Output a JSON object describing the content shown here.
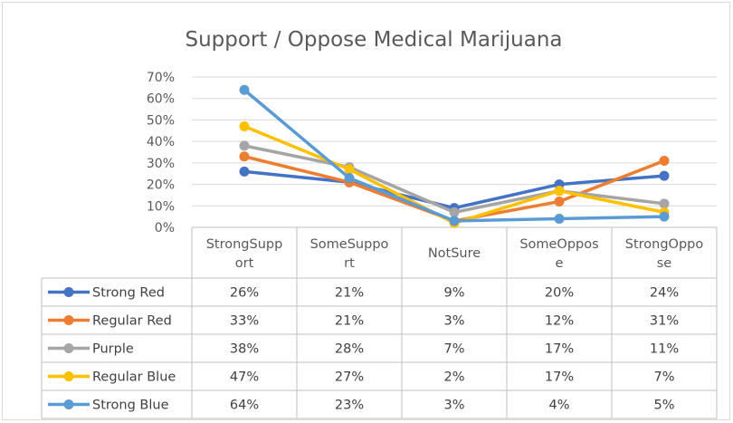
{
  "chart_data": {
    "type": "line",
    "title": "Support / Oppose Medical Marijuana",
    "categories": [
      [
        "StrongSupp",
        "ort"
      ],
      [
        "SomeSuppo",
        "rt"
      ],
      [
        "NotSure"
      ],
      [
        "SomeOppos",
        "e"
      ],
      [
        "StrongOppo",
        "se"
      ]
    ],
    "ylim": [
      0,
      70
    ],
    "yticks": [
      "0%",
      "10%",
      "20%",
      "30%",
      "40%",
      "50%",
      "60%",
      "70%"
    ],
    "grid": true,
    "legend": "data-table",
    "series": [
      {
        "name": "Strong Red",
        "color": "#4472C4",
        "values": [
          26,
          21,
          9,
          20,
          24
        ],
        "labels": [
          "26%",
          "21%",
          "9%",
          "20%",
          "24%"
        ]
      },
      {
        "name": "Regular Red",
        "color": "#ED7D31",
        "values": [
          33,
          21,
          3,
          12,
          31
        ],
        "labels": [
          "33%",
          "21%",
          "3%",
          "12%",
          "31%"
        ]
      },
      {
        "name": "Purple",
        "color": "#A5A5A5",
        "values": [
          38,
          28,
          7,
          17,
          11
        ],
        "labels": [
          "38%",
          "28%",
          "7%",
          "17%",
          "11%"
        ]
      },
      {
        "name": "Regular Blue",
        "color": "#FFC000",
        "values": [
          47,
          27,
          2,
          17,
          7
        ],
        "labels": [
          "47%",
          "27%",
          "2%",
          "17%",
          "7%"
        ]
      },
      {
        "name": "Strong Blue",
        "color": "#5B9BD5",
        "values": [
          64,
          23,
          3,
          4,
          5
        ],
        "labels": [
          "64%",
          "23%",
          "3%",
          "4%",
          "5%"
        ]
      }
    ]
  }
}
